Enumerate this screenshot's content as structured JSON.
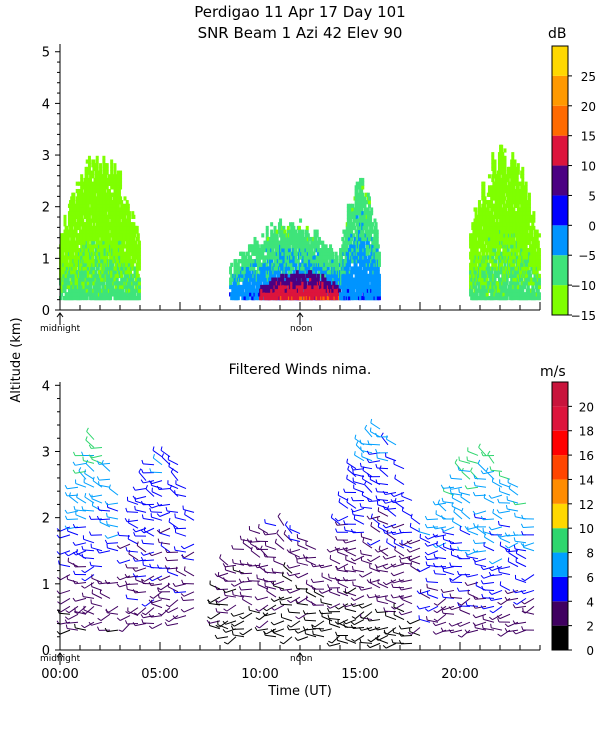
{
  "title_line1": "Perdigao  11 Apr 17 Day 101",
  "title_line2": "SNR Beam 1 Azi  42 Elev 90",
  "ylabel": "Altitude (km)",
  "xlabel": "Time (UT)",
  "colors": {
    "snr": [
      "#7fff00",
      "#3fe47a",
      "#0094ff",
      "#0000ff",
      "#4b0082",
      "#dc143c",
      "#ff6a00",
      "#ff9900",
      "#ffd800"
    ],
    "wind": [
      "#000000",
      "#400060",
      "#0000ff",
      "#00a0ff",
      "#2fd66e",
      "#ffd800",
      "#ff8c00",
      "#ff4500",
      "#ff0000",
      "#dc143c",
      "#c8143c"
    ]
  },
  "chart_data": [
    {
      "type": "heatmap",
      "title": "",
      "colorbar_unit": "dB",
      "colorbar_ticks": [
        "25",
        "20",
        "15",
        "10",
        "5",
        "0",
        "−5",
        "−10",
        "−15"
      ],
      "colorbar_range": [
        -15,
        30
      ],
      "y_ticks": [
        "0",
        "1",
        "2",
        "3",
        "4",
        "5"
      ],
      "ylim": [
        0,
        5.15
      ],
      "x_markers": [
        "midnight",
        "noon"
      ],
      "xlim_hours": [
        0,
        24
      ],
      "features": [
        {
          "hours": [
            0,
            4
          ],
          "alt": [
            0.2,
            3.2
          ],
          "level_db": -12
        },
        {
          "hours": [
            8.5,
            14.5
          ],
          "alt": [
            0.2,
            1.8
          ],
          "level_db": -5
        },
        {
          "hours": [
            10,
            14
          ],
          "alt": [
            0.2,
            0.8
          ],
          "level_db": 10
        },
        {
          "hours": [
            14,
            16
          ],
          "alt": [
            0.2,
            2.6
          ],
          "level_db": -5
        },
        {
          "hours": [
            20.5,
            24
          ],
          "alt": [
            0.2,
            3.3
          ],
          "level_db": -12
        }
      ]
    },
    {
      "type": "scatter",
      "title": "Filtered Winds nima.",
      "colorbar_unit": "m/s",
      "colorbar_ticks": [
        "20",
        "18",
        "16",
        "14",
        "12",
        "10",
        "8",
        "6",
        "4",
        "2",
        "0"
      ],
      "colorbar_range": [
        0,
        22
      ],
      "y_ticks": [
        "0",
        "1",
        "2",
        "3",
        "4"
      ],
      "ylim": [
        0,
        4.05
      ],
      "x_ticks": [
        "00:00",
        "05:00",
        "10:00",
        "15:00",
        "20:00"
      ],
      "x_markers": [
        "midnight",
        "noon"
      ],
      "xlim_hours": [
        0,
        24
      ],
      "series": [
        {
          "hours": [
            0.5,
            3.2
          ],
          "alt": [
            0.3,
            3.2
          ],
          "speed": [
            2,
            9
          ]
        },
        {
          "hours": [
            3.5,
            7
          ],
          "alt": [
            0.4,
            3.0
          ],
          "speed": [
            3,
            6
          ]
        },
        {
          "hours": [
            8,
            14
          ],
          "alt": [
            0.2,
            1.9
          ],
          "speed": [
            1,
            4
          ]
        },
        {
          "hours": [
            14,
            18
          ],
          "alt": [
            0.1,
            3.4
          ],
          "speed": [
            1,
            7
          ]
        },
        {
          "hours": [
            18.5,
            24
          ],
          "alt": [
            0.3,
            3.0
          ],
          "speed": [
            3,
            9
          ]
        }
      ]
    }
  ]
}
